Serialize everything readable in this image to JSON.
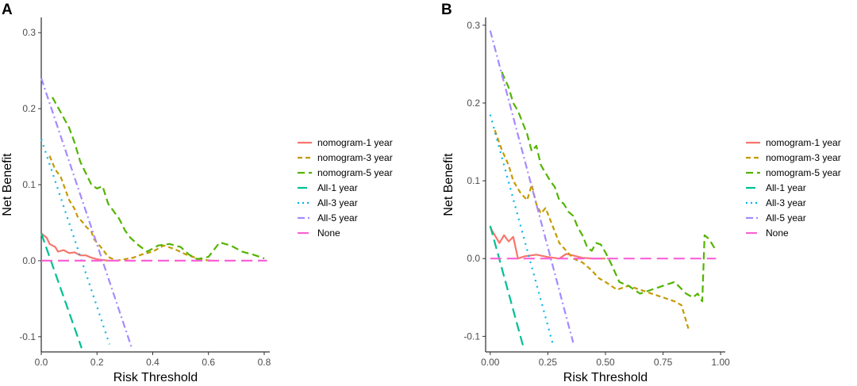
{
  "chart_data": [
    {
      "panel_label": "A",
      "type": "line",
      "title": "",
      "xlabel": "Risk Threshold",
      "ylabel": "Net Benefit",
      "xlim": [
        0,
        0.82
      ],
      "ylim": [
        -0.12,
        0.32
      ],
      "xticks": [
        0.0,
        0.2,
        0.4,
        0.6,
        0.8
      ],
      "xtick_labels": [
        "0.0",
        "0.2",
        "0.4",
        "0.6",
        "0.8"
      ],
      "yticks": [
        -0.1,
        0.0,
        0.1,
        0.2,
        0.3
      ],
      "ytick_labels": [
        "-0.1",
        "0.0",
        "0.1",
        "0.2",
        "0.3"
      ],
      "grid": false,
      "legend_position": "right",
      "series": [
        {
          "name": "nomogram-1 year",
          "color": "#F8766D",
          "dash": "solid",
          "x": [
            0.0,
            0.02,
            0.03,
            0.05,
            0.06,
            0.08,
            0.1,
            0.12,
            0.14,
            0.16,
            0.18,
            0.2,
            0.22,
            0.24
          ],
          "y": [
            0.036,
            0.03,
            0.022,
            0.018,
            0.012,
            0.014,
            0.01,
            0.011,
            0.007,
            0.007,
            0.004,
            0.002,
            0.001,
            0.0
          ]
        },
        {
          "name": "nomogram-3 year",
          "color": "#C49A00",
          "dash": "6,4",
          "x": [
            0.03,
            0.05,
            0.07,
            0.09,
            0.1,
            0.12,
            0.13,
            0.15,
            0.16,
            0.18,
            0.19,
            0.2,
            0.22,
            0.24,
            0.27,
            0.3,
            0.33,
            0.36,
            0.4,
            0.44,
            0.48,
            0.52,
            0.56,
            0.58,
            0.62
          ],
          "y": [
            0.138,
            0.12,
            0.11,
            0.09,
            0.08,
            0.068,
            0.058,
            0.05,
            0.045,
            0.038,
            0.028,
            0.024,
            0.015,
            0.005,
            0.0,
            0.002,
            0.004,
            0.008,
            0.012,
            0.02,
            0.015,
            0.008,
            0.003,
            0.001,
            0.0
          ]
        },
        {
          "name": "nomogram-5 year",
          "color": "#53B400",
          "dash": "9,5",
          "x": [
            0.04,
            0.07,
            0.1,
            0.12,
            0.14,
            0.16,
            0.18,
            0.2,
            0.22,
            0.24,
            0.26,
            0.28,
            0.3,
            0.32,
            0.35,
            0.38,
            0.42,
            0.46,
            0.5,
            0.53,
            0.56,
            0.6,
            0.64,
            0.68,
            0.72,
            0.76,
            0.8
          ],
          "y": [
            0.215,
            0.195,
            0.175,
            0.155,
            0.13,
            0.115,
            0.1,
            0.095,
            0.098,
            0.075,
            0.065,
            0.055,
            0.04,
            0.03,
            0.02,
            0.012,
            0.02,
            0.022,
            0.018,
            0.008,
            0.002,
            0.005,
            0.024,
            0.02,
            0.012,
            0.008,
            0.003
          ]
        },
        {
          "name": "All-1 year",
          "color": "#00C094",
          "dash": "12,6",
          "x": [
            0.0,
            0.145
          ],
          "y": [
            0.036,
            -0.115
          ]
        },
        {
          "name": "All-3 year",
          "color": "#00B6EB",
          "dash": "2,6",
          "x": [
            0.0,
            0.245
          ],
          "y": [
            0.16,
            -0.11
          ]
        },
        {
          "name": "All-5 year",
          "color": "#A58AFF",
          "dash": "9,4,2,4",
          "x": [
            0.0,
            0.325
          ],
          "y": [
            0.24,
            -0.115
          ]
        },
        {
          "name": "None",
          "color": "#FB61D7",
          "dash": "14,7",
          "x": [
            0.0,
            0.81
          ],
          "y": [
            0.0,
            0.0
          ]
        }
      ]
    },
    {
      "panel_label": "B",
      "type": "line",
      "title": "",
      "xlabel": "Risk Threshold",
      "ylabel": "Net Benefit",
      "xlim": [
        -0.02,
        1.02
      ],
      "ylim": [
        -0.12,
        0.31
      ],
      "xticks": [
        0.0,
        0.25,
        0.5,
        0.75,
        1.0
      ],
      "xtick_labels": [
        "0.00",
        "0.25",
        "0.50",
        "0.75",
        "1.00"
      ],
      "yticks": [
        -0.1,
        0.0,
        0.1,
        0.2,
        0.3
      ],
      "ytick_labels": [
        "-0.1",
        "0.0",
        "0.1",
        "0.2",
        "0.3"
      ],
      "grid": false,
      "legend_position": "right",
      "series": [
        {
          "name": "nomogram-1 year",
          "color": "#F8766D",
          "dash": "solid",
          "x": [
            0.0,
            0.02,
            0.04,
            0.06,
            0.08,
            0.1,
            0.12,
            0.15,
            0.2,
            0.25,
            0.3,
            0.33,
            0.36,
            0.4,
            0.45,
            0.5
          ],
          "y": [
            0.04,
            0.03,
            0.02,
            0.03,
            0.022,
            0.028,
            0.0,
            0.003,
            0.005,
            0.002,
            0.0,
            0.006,
            0.004,
            0.001,
            0.0,
            0.0
          ]
        },
        {
          "name": "nomogram-3 year",
          "color": "#C49A00",
          "dash": "6,4",
          "x": [
            0.02,
            0.05,
            0.08,
            0.1,
            0.13,
            0.16,
            0.18,
            0.2,
            0.22,
            0.24,
            0.26,
            0.28,
            0.3,
            0.33,
            0.36,
            0.4,
            0.44,
            0.47,
            0.5,
            0.55,
            0.6,
            0.65,
            0.7,
            0.75,
            0.8,
            0.83,
            0.86
          ],
          "y": [
            0.165,
            0.14,
            0.12,
            0.1,
            0.085,
            0.075,
            0.095,
            0.07,
            0.058,
            0.065,
            0.05,
            0.035,
            0.02,
            0.01,
            0.0,
            -0.005,
            -0.015,
            -0.025,
            -0.03,
            -0.04,
            -0.035,
            -0.04,
            -0.045,
            -0.05,
            -0.055,
            -0.06,
            -0.09
          ]
        },
        {
          "name": "nomogram-5 year",
          "color": "#53B400",
          "dash": "9,5",
          "x": [
            0.05,
            0.08,
            0.1,
            0.12,
            0.14,
            0.16,
            0.18,
            0.2,
            0.22,
            0.24,
            0.26,
            0.28,
            0.3,
            0.32,
            0.34,
            0.36,
            0.38,
            0.4,
            0.42,
            0.44,
            0.46,
            0.48,
            0.5,
            0.53,
            0.56,
            0.6,
            0.65,
            0.7,
            0.75,
            0.8,
            0.85,
            0.88,
            0.9,
            0.92,
            0.93,
            0.95,
            0.98
          ],
          "y": [
            0.24,
            0.22,
            0.2,
            0.19,
            0.175,
            0.16,
            0.138,
            0.145,
            0.12,
            0.11,
            0.1,
            0.092,
            0.075,
            0.07,
            0.06,
            0.055,
            0.04,
            0.03,
            0.015,
            0.01,
            0.02,
            0.018,
            0.008,
            -0.01,
            -0.03,
            -0.035,
            -0.045,
            -0.04,
            -0.035,
            -0.03,
            -0.045,
            -0.05,
            -0.045,
            -0.055,
            0.03,
            0.025,
            0.01
          ]
        },
        {
          "name": "All-1 year",
          "color": "#00C094",
          "dash": "12,6",
          "x": [
            0.0,
            0.145
          ],
          "y": [
            0.042,
            -0.115
          ]
        },
        {
          "name": "All-3 year",
          "color": "#00B6EB",
          "dash": "2,6",
          "x": [
            0.0,
            0.27
          ],
          "y": [
            0.185,
            -0.108
          ]
        },
        {
          "name": "All-5 year",
          "color": "#A58AFF",
          "dash": "9,4,2,4",
          "x": [
            0.0,
            0.36
          ],
          "y": [
            0.293,
            -0.108
          ]
        },
        {
          "name": "None",
          "color": "#FB61D7",
          "dash": "14,7",
          "x": [
            0.0,
            0.98
          ],
          "y": [
            0.0,
            0.0
          ]
        }
      ]
    }
  ]
}
